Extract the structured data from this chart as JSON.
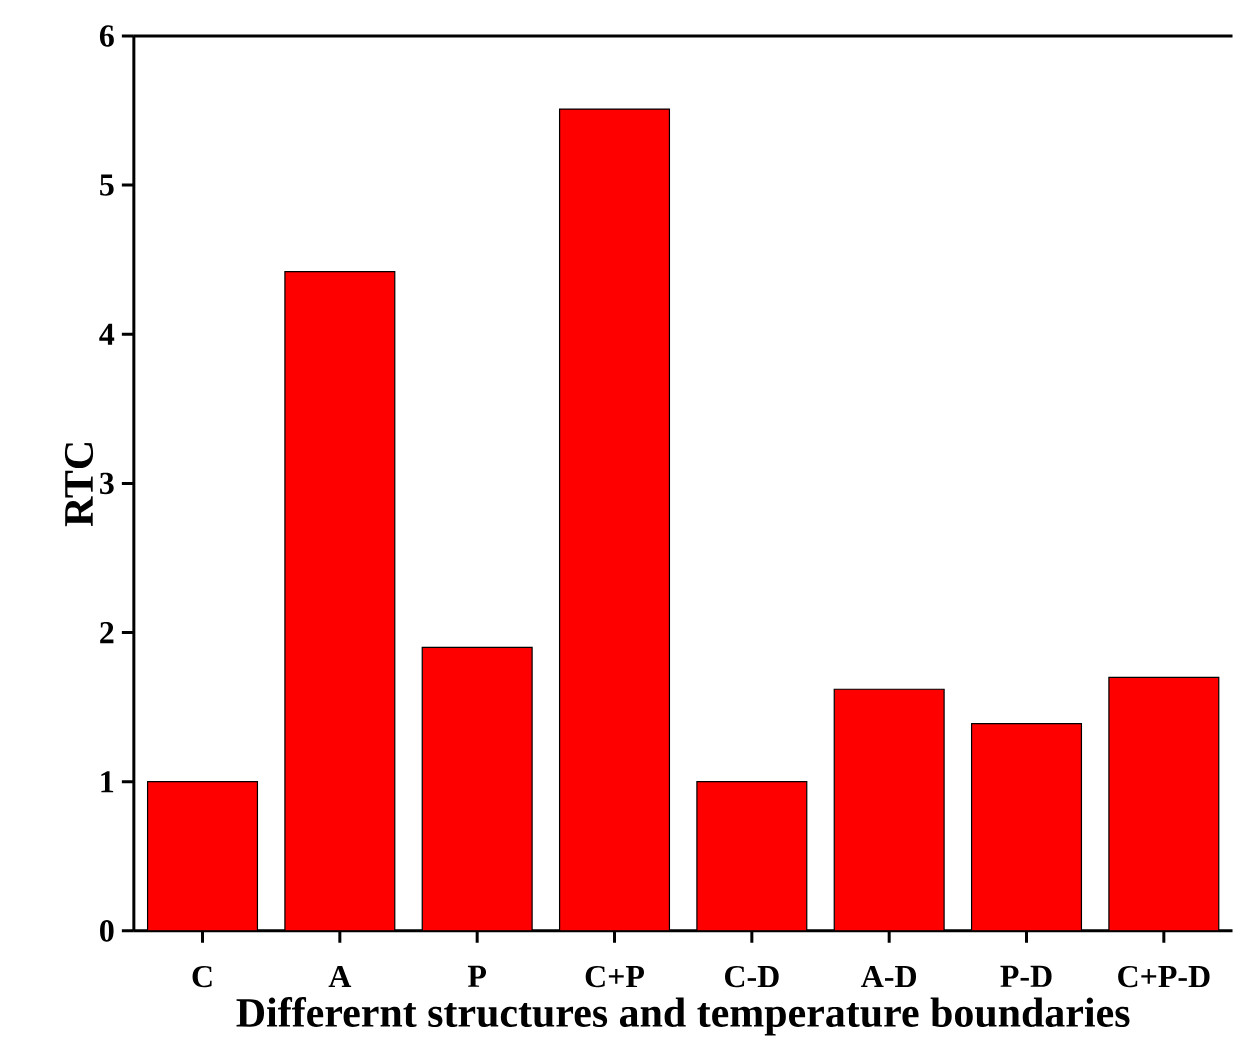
{
  "chart_data": {
    "type": "bar",
    "xlabel": "Differernt structures and temperature boundaries",
    "ylabel": "RTC",
    "categories": [
      "C",
      "A",
      "P",
      "C+P",
      "C-D",
      "A-D",
      "P-D",
      "C+P-D"
    ],
    "values": [
      1.0,
      4.42,
      1.9,
      5.51,
      1.0,
      1.62,
      1.39,
      1.7
    ],
    "color": "#fe0000",
    "ylim": [
      0,
      6
    ],
    "yticks": [
      0,
      1,
      2,
      3,
      4,
      5,
      6
    ],
    "grid": false
  }
}
